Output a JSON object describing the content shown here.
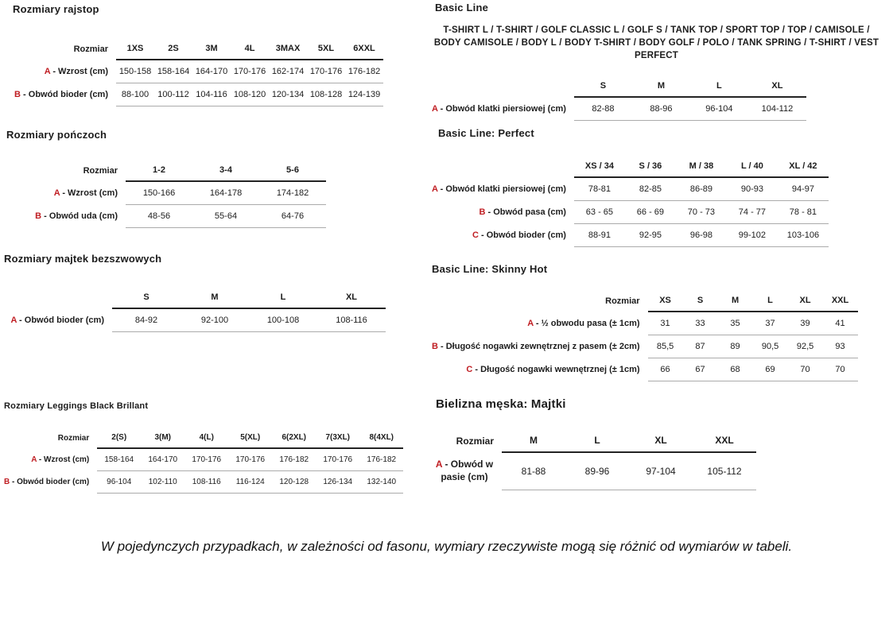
{
  "colors": {
    "accent_red": "#c01e23",
    "text": "#1c1c1c",
    "header_line": "#232323",
    "row_line": "#ababab",
    "background": "#ffffff"
  },
  "footer": {
    "note": "W pojedynczych przypadkach, w zależności od fasonu, wymiary rzeczywiste mogą się różnić od wymiarów w tabeli."
  },
  "tables": [
    {
      "title": "Rozmiary rajstop",
      "size_label": "Rozmiar",
      "columns": [
        "1XS",
        "2S",
        "3M",
        "4L",
        "3MAX",
        "5XL",
        "6XXL"
      ],
      "rows": [
        {
          "letter": "A",
          "label": "Wzrost (cm)",
          "values": [
            "150-158",
            "158-164",
            "164-170",
            "170-176",
            "162-174",
            "170-176",
            "176-182"
          ]
        },
        {
          "letter": "B",
          "label": "Obwód bioder (cm)",
          "values": [
            "88-100",
            "100-112",
            "104-116",
            "108-120",
            "120-134",
            "108-128",
            "124-139"
          ]
        }
      ]
    },
    {
      "title": "Rozmiary pończoch",
      "size_label": "Rozmiar",
      "columns": [
        "1-2",
        "3-4",
        "5-6"
      ],
      "rows": [
        {
          "letter": "A",
          "label": "Wzrost (cm)",
          "values": [
            "150-166",
            "164-178",
            "174-182"
          ]
        },
        {
          "letter": "B",
          "label": "Obwód uda (cm)",
          "values": [
            "48-56",
            "55-64",
            "64-76"
          ]
        }
      ]
    },
    {
      "title": "Rozmiary majtek bezszwowych",
      "size_label": "",
      "columns": [
        "S",
        "M",
        "L",
        "XL"
      ],
      "rows": [
        {
          "letter": "A",
          "label": "Obwód bioder (cm)",
          "values": [
            "84-92",
            "92-100",
            "100-108",
            "108-116"
          ]
        }
      ]
    },
    {
      "title": "Rozmiary Leggings Black Brillant",
      "size_label": "Rozmiar",
      "columns": [
        "2(S)",
        "3(M)",
        "4(L)",
        "5(XL)",
        "6(2XL)",
        "7(3XL)",
        "8(4XL)"
      ],
      "rows": [
        {
          "letter": "A",
          "label": "Wzrost (cm)",
          "values": [
            "158-164",
            "164-170",
            "170-176",
            "170-176",
            "176-182",
            "170-176",
            "176-182"
          ]
        },
        {
          "letter": "B",
          "label": "Obwód bioder (cm)",
          "values": [
            "96-104",
            "102-110",
            "108-116",
            "116-124",
            "120-128",
            "126-134",
            "132-140"
          ]
        }
      ]
    },
    {
      "title": "Basic Line",
      "subtitle": "T-SHIRT L / T-SHIRT / GOLF CLASSIC L / GOLF S / TANK TOP / SPORT TOP / TOP / CAMISOLE / BODY CAMISOLE / BODY L / BODY T-SHIRT / BODY GOLF / POLO / TANK SPRING / T-SHIRT / VEST PERFECT",
      "size_label": "",
      "columns": [
        "S",
        "M",
        "L",
        "XL"
      ],
      "rows": [
        {
          "letter": "A",
          "label": "Obwód klatki piersiowej (cm)",
          "values": [
            "82-88",
            "88-96",
            "96-104",
            "104-112"
          ]
        }
      ]
    },
    {
      "title": "Basic Line: Perfect",
      "size_label": "",
      "columns": [
        "XS / 34",
        "S / 36",
        "M / 38",
        "L / 40",
        "XL / 42"
      ],
      "rows": [
        {
          "letter": "A",
          "label": "Obwód klatki piersiowej (cm)",
          "values": [
            "78-81",
            "82-85",
            "86-89",
            "90-93",
            "94-97"
          ]
        },
        {
          "letter": "B",
          "label": "Obwód pasa (cm)",
          "values": [
            "63 - 65",
            "66 - 69",
            "70 - 73",
            "74 - 77",
            "78 - 81"
          ]
        },
        {
          "letter": "C",
          "label": "Obwód bioder (cm)",
          "values": [
            "88-91",
            "92-95",
            "96-98",
            "99-102",
            "103-106"
          ]
        }
      ]
    },
    {
      "title": "Basic Line: Skinny Hot",
      "size_label": "Rozmiar",
      "columns": [
        "XS",
        "S",
        "M",
        "L",
        "XL",
        "XXL"
      ],
      "rows": [
        {
          "letter": "A",
          "label": "½ obwodu pasa (± 1cm)",
          "values": [
            "31",
            "33",
            "35",
            "37",
            "39",
            "41"
          ]
        },
        {
          "letter": "B",
          "label": "Długość nogawki zewnętrznej z pasem (± 2cm)",
          "values": [
            "85,5",
            "87",
            "89",
            "90,5",
            "92,5",
            "93"
          ]
        },
        {
          "letter": "C",
          "label": "Długość nogawki wewnętrznej (± 1cm)",
          "values": [
            "66",
            "67",
            "68",
            "69",
            "70",
            "70"
          ]
        }
      ]
    },
    {
      "title": "Bielizna męska: Majtki",
      "size_label": "Rozmiar",
      "columns": [
        "M",
        "L",
        "XL",
        "XXL"
      ],
      "rows": [
        {
          "letter": "A",
          "label": "Obwód w pasie (cm)",
          "values": [
            "81-88",
            "89-96",
            "97-104",
            "105-112"
          ]
        }
      ]
    }
  ]
}
